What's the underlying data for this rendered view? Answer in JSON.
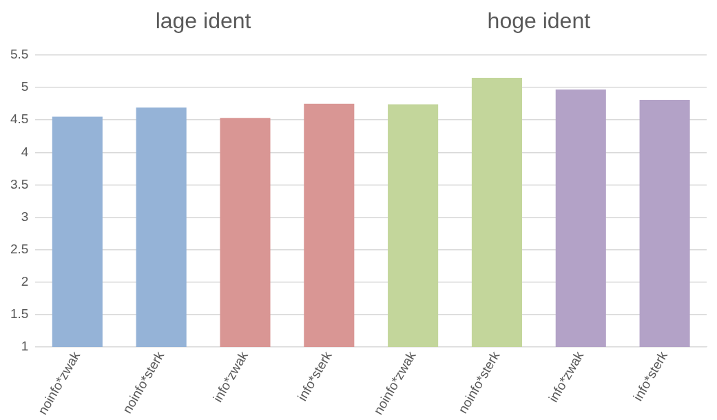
{
  "chart_data": {
    "type": "bar",
    "categories": [
      "noinfo*zwak",
      "noinfo*sterk",
      "info*zwak",
      "info*sterk",
      "noinfo*zwak",
      "noinfo*sterk",
      "info*zwak",
      "info*sterk"
    ],
    "values": [
      4.55,
      4.69,
      4.53,
      4.75,
      4.74,
      5.15,
      4.97,
      4.81
    ],
    "colors": [
      "#95b3d7",
      "#95b3d7",
      "#d99694",
      "#d99694",
      "#c3d69b",
      "#c3d69b",
      "#b3a2c7",
      "#b3a2c7"
    ],
    "ylim": [
      1,
      5.5
    ],
    "yticks": [
      1,
      1.5,
      2,
      2.5,
      3,
      3.5,
      4,
      4.5,
      5,
      5.5
    ],
    "grid": "y",
    "legend": false,
    "annotations": [
      "lage ident",
      "hoge ident"
    ]
  }
}
